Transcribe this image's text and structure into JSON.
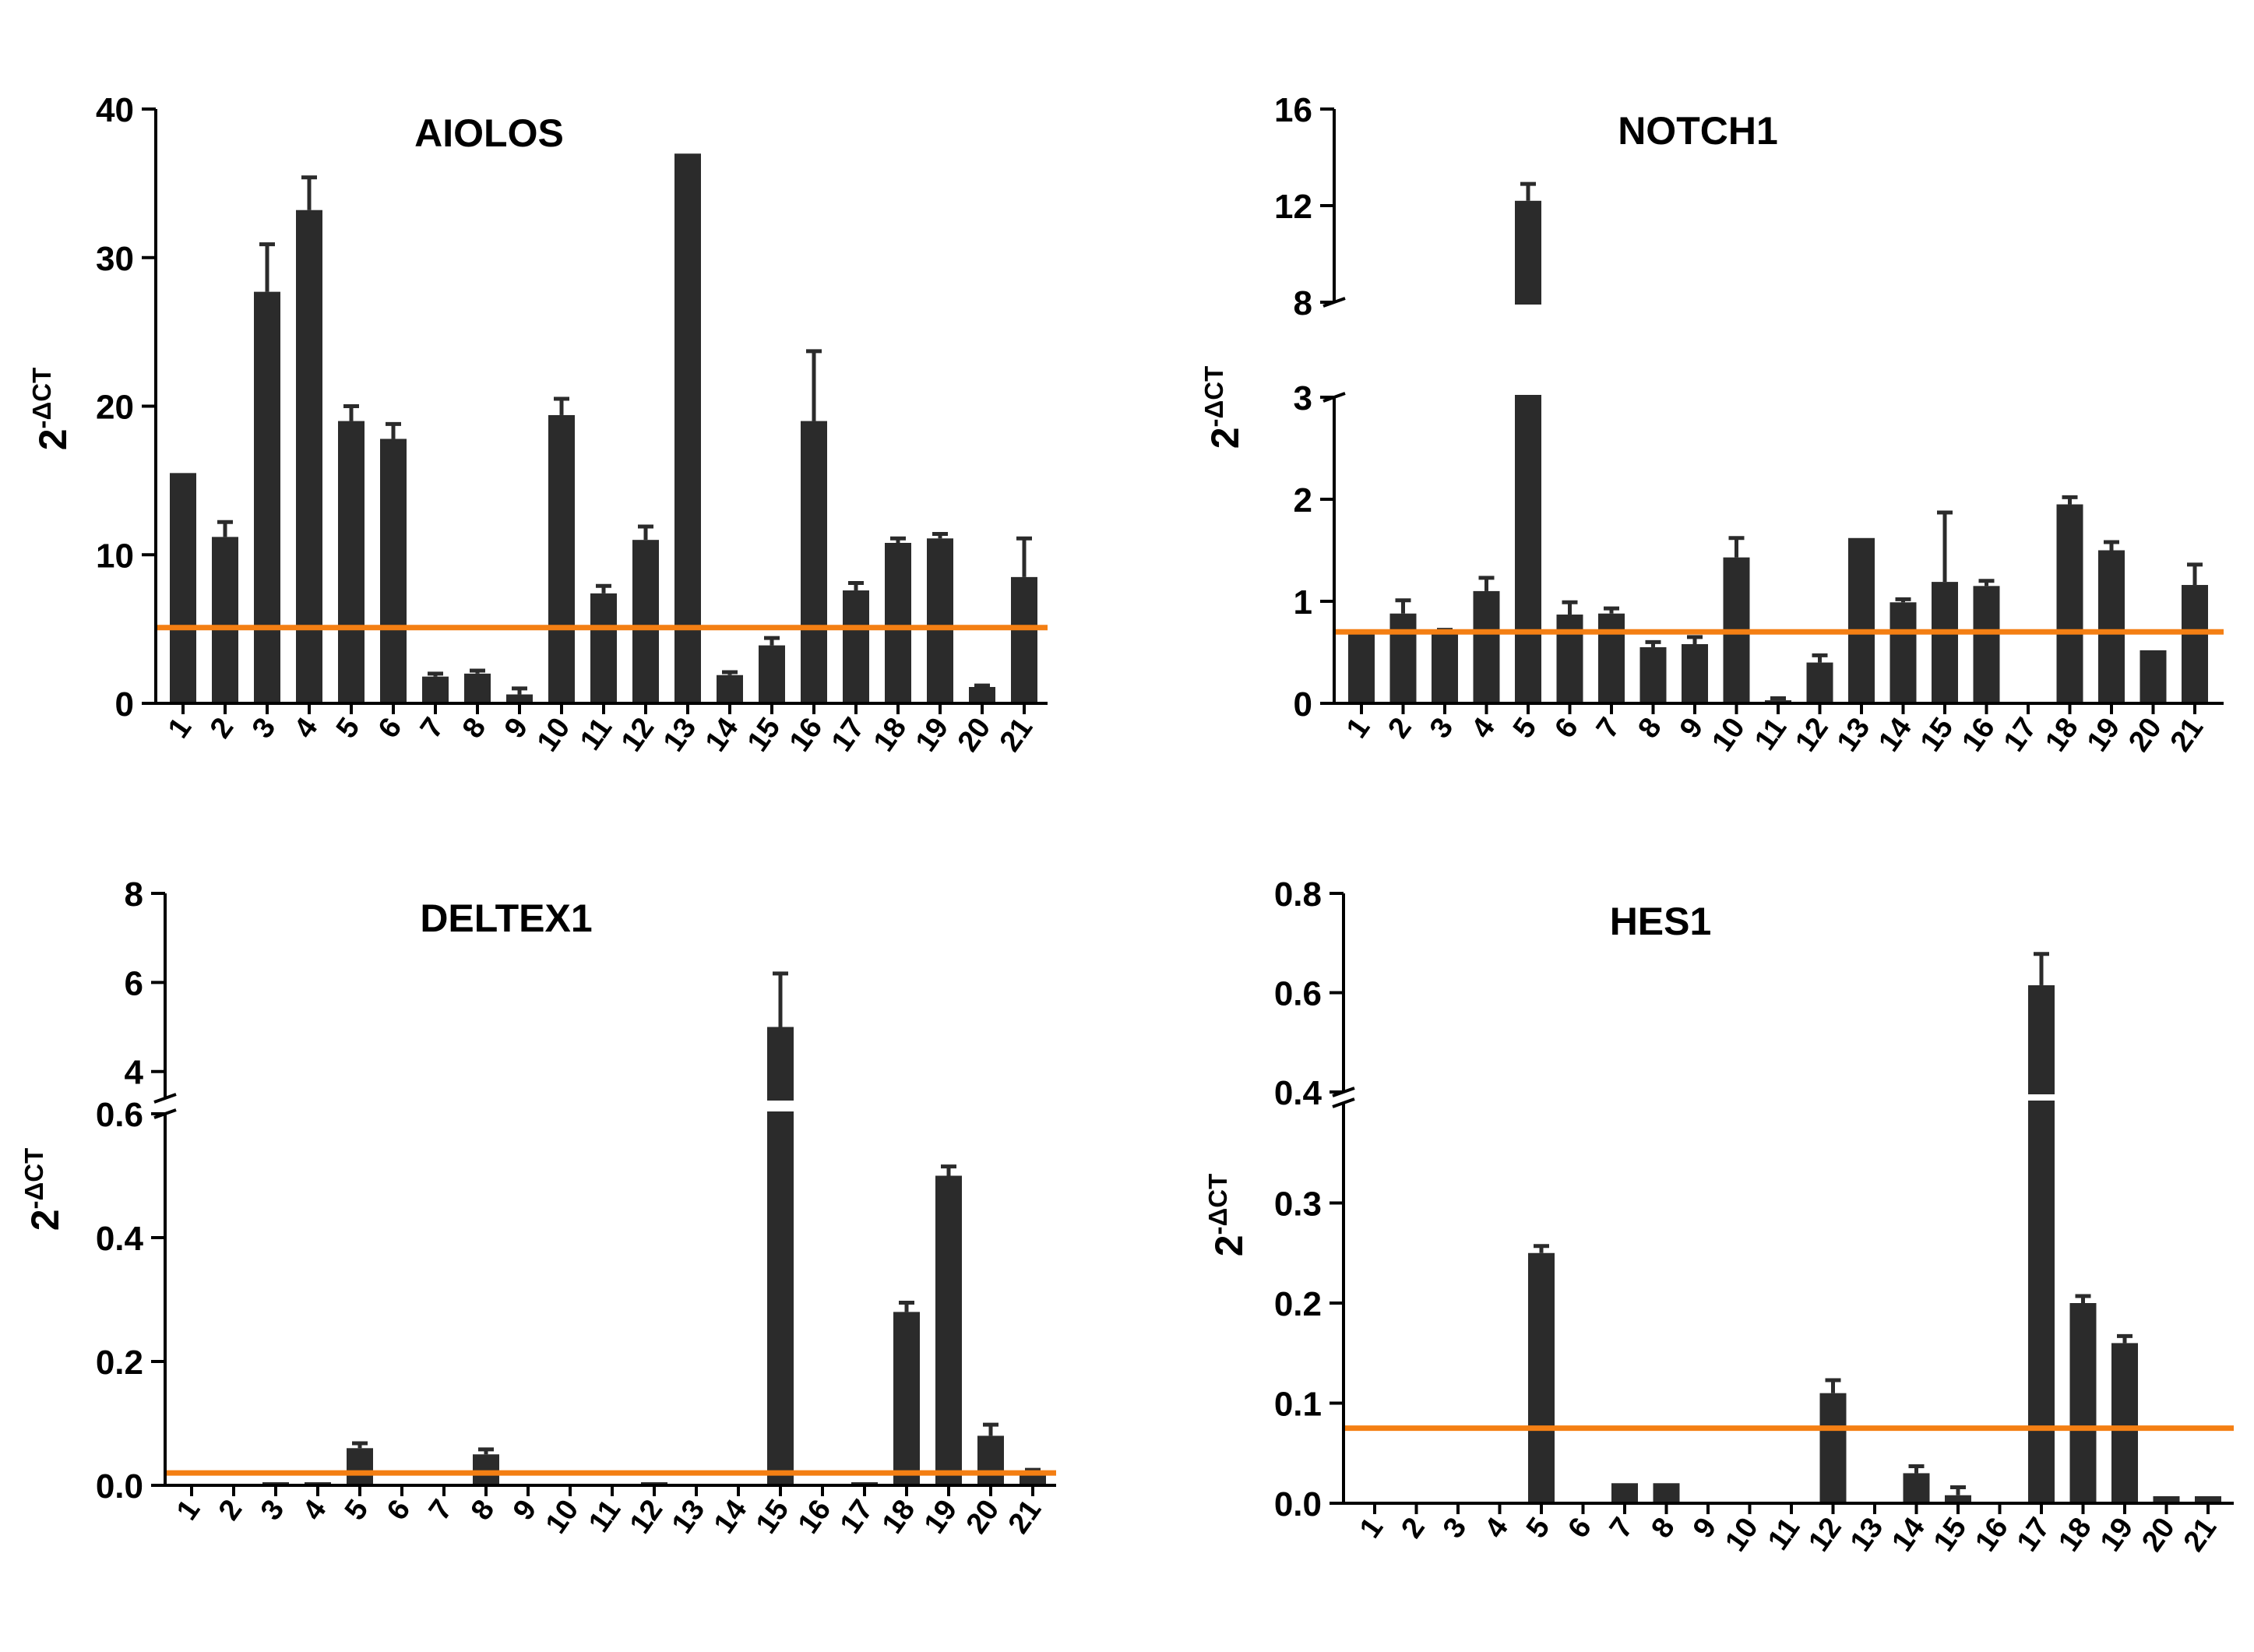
{
  "colors": {
    "bar": "#2b2b2b",
    "threshold": "#f47f13",
    "axis": "#000000",
    "background": "#ffffff"
  },
  "chart_data": [
    {
      "type": "bar",
      "title": "AIOLOS",
      "ylabel_base": "2",
      "ylabel_sup": "-ΔCT",
      "categories": [
        "1",
        "2",
        "3",
        "4",
        "5",
        "6",
        "7",
        "8",
        "9",
        "10",
        "11",
        "12",
        "13",
        "14",
        "15",
        "16",
        "17",
        "18",
        "19",
        "20",
        "21"
      ],
      "values": [
        15.5,
        11.2,
        27.7,
        33.2,
        19.0,
        17.8,
        1.8,
        2.0,
        0.6,
        19.4,
        7.4,
        11.0,
        37.0,
        1.9,
        3.9,
        19.0,
        7.6,
        10.8,
        11.1,
        1.1,
        8.5
      ],
      "errors": [
        0,
        1.0,
        3.2,
        2.2,
        1.0,
        1.0,
        0.2,
        0.2,
        0.4,
        1.1,
        0.5,
        0.9,
        0,
        0.2,
        0.5,
        4.7,
        0.5,
        0.3,
        0.3,
        0.1,
        2.6
      ],
      "ylim": [
        0,
        40
      ],
      "yticks": [
        0,
        10,
        20,
        30,
        40
      ],
      "ytick_labels": [
        "0",
        "10",
        "20",
        "30",
        "40"
      ],
      "threshold": 5.1
    },
    {
      "type": "bar",
      "title": "NOTCH1",
      "ylabel_base": "2",
      "ylabel_sup": "-ΔCT",
      "categories": [
        "1",
        "2",
        "3",
        "4",
        "5",
        "6",
        "7",
        "8",
        "9",
        "10",
        "11",
        "12",
        "13",
        "14",
        "15",
        "16",
        "17",
        "18",
        "19",
        "20",
        "21"
      ],
      "values": [
        0.68,
        0.88,
        0.7,
        1.1,
        12.2,
        0.87,
        0.88,
        0.55,
        0.58,
        1.43,
        0.03,
        0.4,
        1.62,
        0.99,
        1.19,
        1.15,
        0.0,
        1.95,
        1.5,
        0.52,
        1.16
      ],
      "errors": [
        0,
        0.13,
        0.02,
        0.13,
        0.7,
        0.12,
        0.05,
        0.05,
        0.07,
        0.19,
        0.02,
        0.07,
        0,
        0.03,
        0.68,
        0.05,
        0,
        0.07,
        0.08,
        0,
        0.2
      ],
      "y_break": {
        "lower": [
          0,
          3
        ],
        "upper": [
          8,
          16
        ]
      },
      "yticks": [
        0,
        1,
        2,
        3,
        8,
        12,
        16
      ],
      "ytick_labels": [
        "0",
        "1",
        "2",
        "3",
        "8",
        "12",
        "16"
      ],
      "threshold": 0.7
    },
    {
      "type": "bar",
      "title": "DELTEX1",
      "ylabel_base": "2",
      "ylabel_sup": "-ΔCT",
      "categories": [
        "1",
        "2",
        "3",
        "4",
        "5",
        "6",
        "7",
        "8",
        "9",
        "10",
        "11",
        "12",
        "13",
        "14",
        "15",
        "16",
        "17",
        "18",
        "19",
        "20",
        "21"
      ],
      "values": [
        0,
        0,
        0.005,
        0.005,
        0.06,
        0,
        0,
        0.05,
        0,
        0,
        0,
        0.005,
        0,
        0,
        5.0,
        0,
        0.005,
        0.28,
        0.5,
        0.08,
        0.02
      ],
      "errors": [
        0,
        0,
        0,
        0,
        0.008,
        0,
        0,
        0.008,
        0,
        0,
        0,
        0,
        0,
        0,
        1.2,
        0,
        0,
        0.015,
        0.015,
        0.018,
        0.005
      ],
      "y_break": {
        "lower": [
          0,
          0.6
        ],
        "upper": [
          3.4,
          8
        ]
      },
      "yticks": [
        0,
        0.2,
        0.4,
        0.6,
        4,
        6,
        8
      ],
      "ytick_labels": [
        "0.0",
        "0.2",
        "0.4",
        "0.6",
        "4",
        "6",
        "8"
      ],
      "threshold": 0.02
    },
    {
      "type": "bar",
      "title": "HES1",
      "ylabel_base": "2",
      "ylabel_sup": "-ΔCT",
      "categories": [
        "1",
        "2",
        "3",
        "4",
        "5",
        "6",
        "7",
        "8",
        "9",
        "10",
        "11",
        "12",
        "13",
        "14",
        "15",
        "16",
        "17",
        "18",
        "19",
        "20",
        "21"
      ],
      "values": [
        0,
        0,
        0,
        0,
        0.25,
        0,
        0.02,
        0.02,
        0,
        0,
        0,
        0.11,
        0,
        0.03,
        0.008,
        0,
        0.615,
        0.2,
        0.16,
        0.007,
        0.007
      ],
      "errors": [
        0,
        0,
        0,
        0,
        0.007,
        0,
        0,
        0,
        0,
        0,
        0,
        0.013,
        0,
        0.007,
        0.008,
        0,
        0.063,
        0.007,
        0.007,
        0,
        0
      ],
      "y_break": {
        "lower": [
          0,
          0.4
        ],
        "upper": [
          0.4,
          0.8
        ]
      },
      "yticks": [
        0,
        0.1,
        0.2,
        0.3,
        0.4,
        0.6,
        0.8
      ],
      "ytick_labels": [
        "0.0",
        "0.1",
        "0.2",
        "0.3",
        "0.4",
        "0.6",
        "0.8"
      ],
      "threshold": 0.075
    }
  ]
}
